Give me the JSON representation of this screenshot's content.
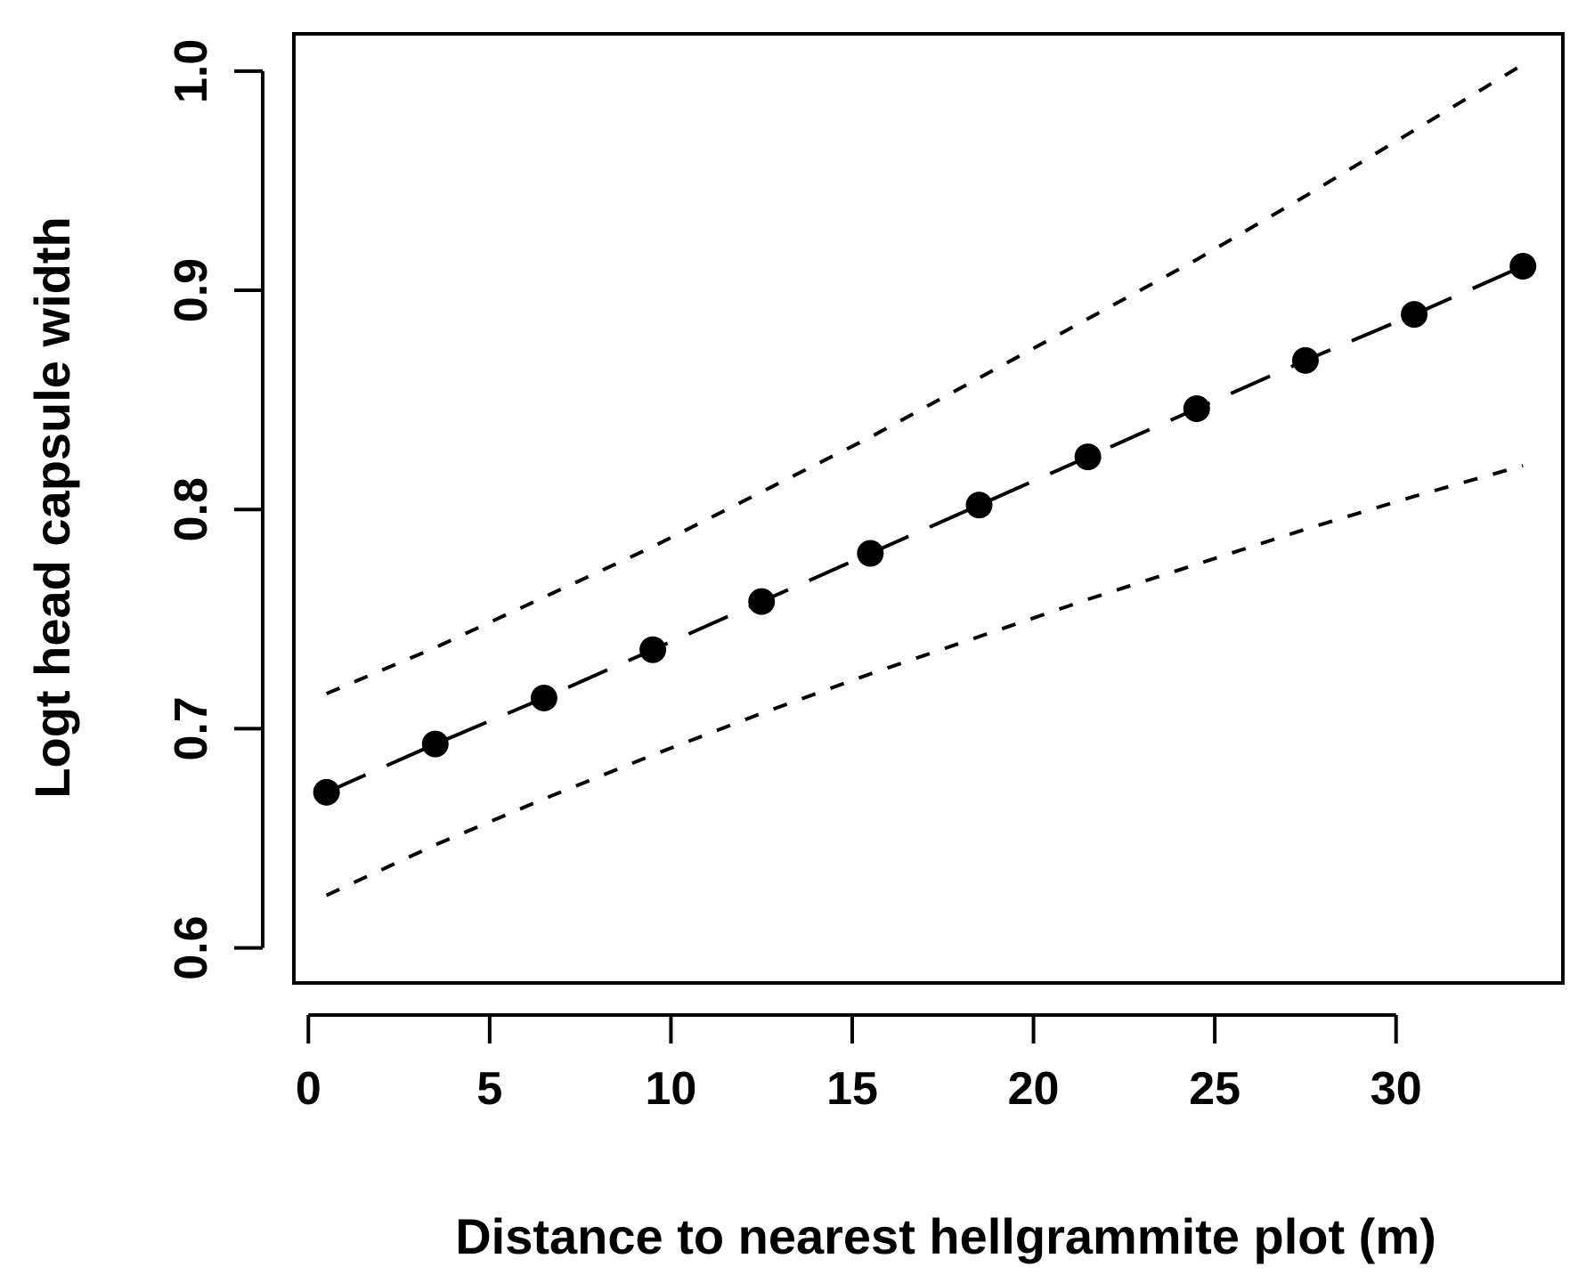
{
  "chart_data": {
    "type": "line",
    "title": "",
    "xlabel": "Distance to nearest hellgrammite plot (m)",
    "ylabel": "Logt head capsule width",
    "xlim": [
      -0.4,
      34.6
    ],
    "ylim": [
      0.584,
      1.017
    ],
    "x_ticks": [
      0,
      5,
      10,
      15,
      20,
      25,
      30
    ],
    "y_ticks": [
      0.6,
      0.7,
      0.8,
      0.9,
      1.0
    ],
    "x_tick_labels": [
      "0",
      "5",
      "10",
      "15",
      "20",
      "25",
      "30"
    ],
    "y_tick_labels": [
      "0.6",
      "0.7",
      "0.8",
      "0.9",
      "1.0"
    ],
    "grid": false,
    "x": [
      0.5,
      3.5,
      6.5,
      9.5,
      12.5,
      15.5,
      18.5,
      21.5,
      24.5,
      27.5,
      30.5,
      33.5
    ],
    "series": [
      {
        "role": "fitted",
        "style": "long-dash line with filled circle markers",
        "values": [
          0.671,
          0.693,
          0.714,
          0.736,
          0.758,
          0.78,
          0.802,
          0.824,
          0.846,
          0.868,
          0.889,
          0.911
        ]
      },
      {
        "role": "upper-bound",
        "style": "short-dash line",
        "values": [
          0.716,
          0.737,
          0.76,
          0.783,
          0.808,
          0.833,
          0.86,
          0.887,
          0.914,
          0.943,
          0.973,
          1.003
        ]
      },
      {
        "role": "lower-bound",
        "style": "short-dash line",
        "values": [
          0.624,
          0.647,
          0.668,
          0.688,
          0.707,
          0.725,
          0.742,
          0.759,
          0.775,
          0.791,
          0.806,
          0.82
        ]
      }
    ],
    "colors": {
      "line": "#000000",
      "background": "#ffffff"
    }
  }
}
